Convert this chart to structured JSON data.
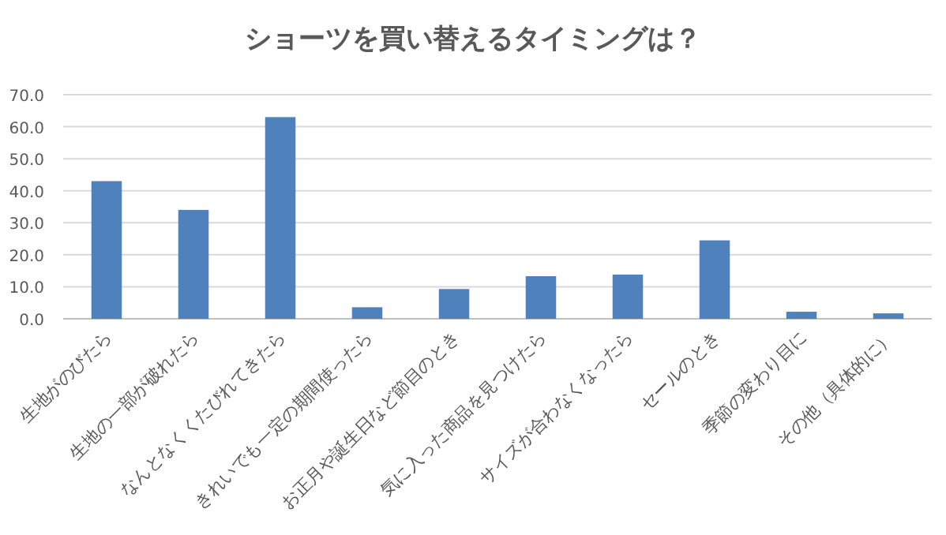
{
  "chart_data": {
    "type": "bar",
    "title": "ショーツを買い替えるタイミングは？",
    "categories": [
      "生地がのびたら",
      "生地の一部が破れたら",
      "なんとなくくたびれてきたら",
      "きれいでも一定の期間使ったら",
      "お正月や誕生日など節目のとき",
      "気に入った商品を見つけたら",
      "サイズが合わなくなったら",
      "セールのとき",
      "季節の変わり目に",
      "その他（具体的に）"
    ],
    "values": [
      43.0,
      34.0,
      63.0,
      3.6,
      9.3,
      13.3,
      13.8,
      24.5,
      2.2,
      1.7
    ],
    "color": "#4f81bd",
    "ylim": [
      0,
      70
    ],
    "yticks": [
      {
        "value": 0,
        "label": "0.0"
      },
      {
        "value": 10,
        "label": "10.0"
      },
      {
        "value": 20,
        "label": "20.0"
      },
      {
        "value": 30,
        "label": "30.0"
      },
      {
        "value": 40,
        "label": "40.0"
      },
      {
        "value": 50,
        "label": "50.0"
      },
      {
        "value": 60,
        "label": "60.0"
      },
      {
        "value": 70,
        "label": "70.0"
      }
    ],
    "grid": "y"
  }
}
